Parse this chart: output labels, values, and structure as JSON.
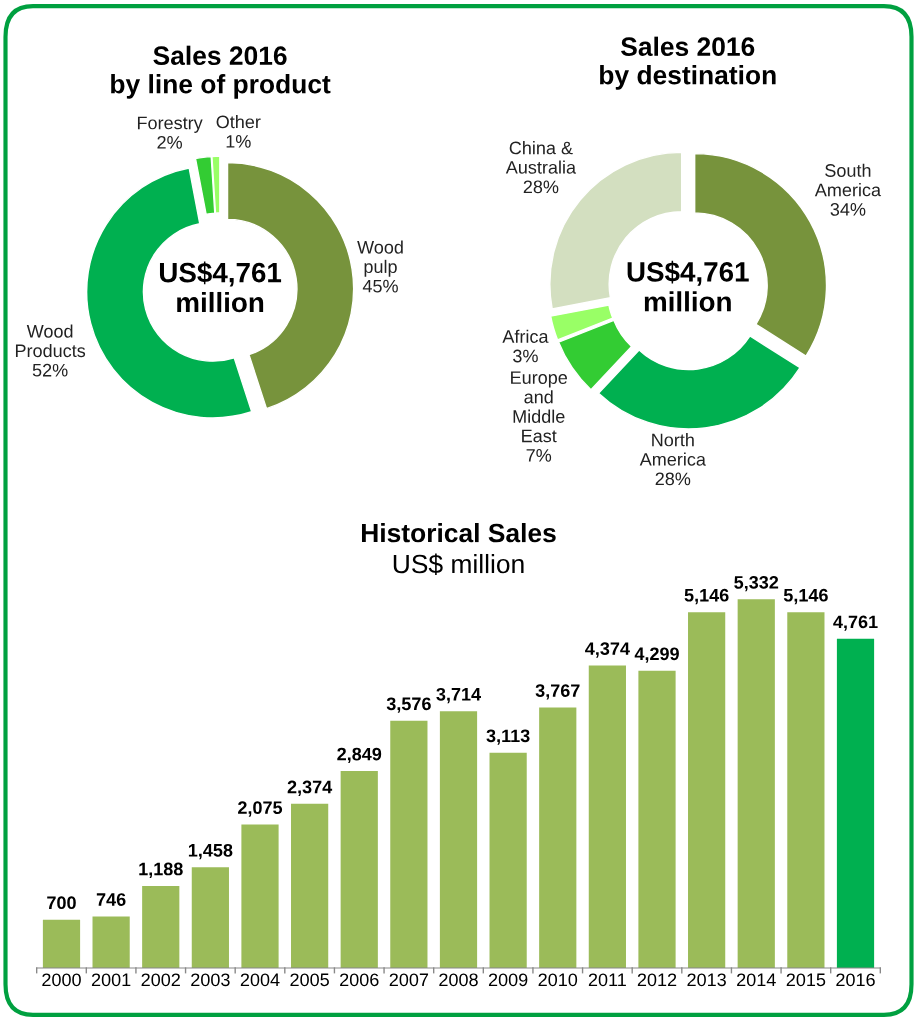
{
  "chart_data": [
    {
      "type": "donut",
      "title": "Sales 2016\nby line of product",
      "annotations": [
        "US$4,761\nmillion"
      ],
      "categories": [
        "Wood\npulp",
        "Wood\nProducts",
        "Forestry",
        "Other"
      ],
      "values": [
        45,
        52,
        2,
        1
      ],
      "value_labels": [
        "45%",
        "52%",
        "2%",
        "1%"
      ],
      "colors": [
        "#77933c",
        "#00b050",
        "#33cc33",
        "#99ff66"
      ]
    },
    {
      "type": "donut",
      "title": "Sales 2016\nby destination",
      "annotations": [
        "US$4,761\nmillion"
      ],
      "categories": [
        "South\nAmerica",
        "North\nAmerica",
        "Europe\nand\nMiddle\nEast",
        "Africa",
        "China &\nAustralia"
      ],
      "values": [
        34,
        28,
        7,
        3,
        28
      ],
      "value_labels": [
        "34%",
        "28%",
        "7%",
        "3%",
        "28%"
      ],
      "colors": [
        "#77933c",
        "#00b050",
        "#33cc33",
        "#99ff66",
        "#d3dfc0"
      ]
    },
    {
      "type": "bar",
      "title": "Historical Sales",
      "subtitle": "US$ million",
      "categories": [
        "2000",
        "2001",
        "2002",
        "2003",
        "2004",
        "2005",
        "2006",
        "2007",
        "2008",
        "2009",
        "2010",
        "2011",
        "2012",
        "2013",
        "2014",
        "2015",
        "2016"
      ],
      "values": [
        700,
        746,
        1188,
        1458,
        2075,
        2374,
        2849,
        3576,
        3714,
        3113,
        3767,
        4374,
        4299,
        5146,
        5332,
        5146,
        4761
      ],
      "value_labels": [
        "700",
        "746",
        "1,188",
        "1,458",
        "2,075",
        "2,374",
        "2,849",
        "3,576",
        "3,714",
        "3,113",
        "3,767",
        "4,374",
        "4,299",
        "5,146",
        "5,332",
        "5,146",
        "4,761"
      ],
      "colors": [
        "#9bbb59",
        "#9bbb59",
        "#9bbb59",
        "#9bbb59",
        "#9bbb59",
        "#9bbb59",
        "#9bbb59",
        "#9bbb59",
        "#9bbb59",
        "#9bbb59",
        "#9bbb59",
        "#9bbb59",
        "#9bbb59",
        "#9bbb59",
        "#9bbb59",
        "#9bbb59",
        "#00b050"
      ]
    }
  ]
}
